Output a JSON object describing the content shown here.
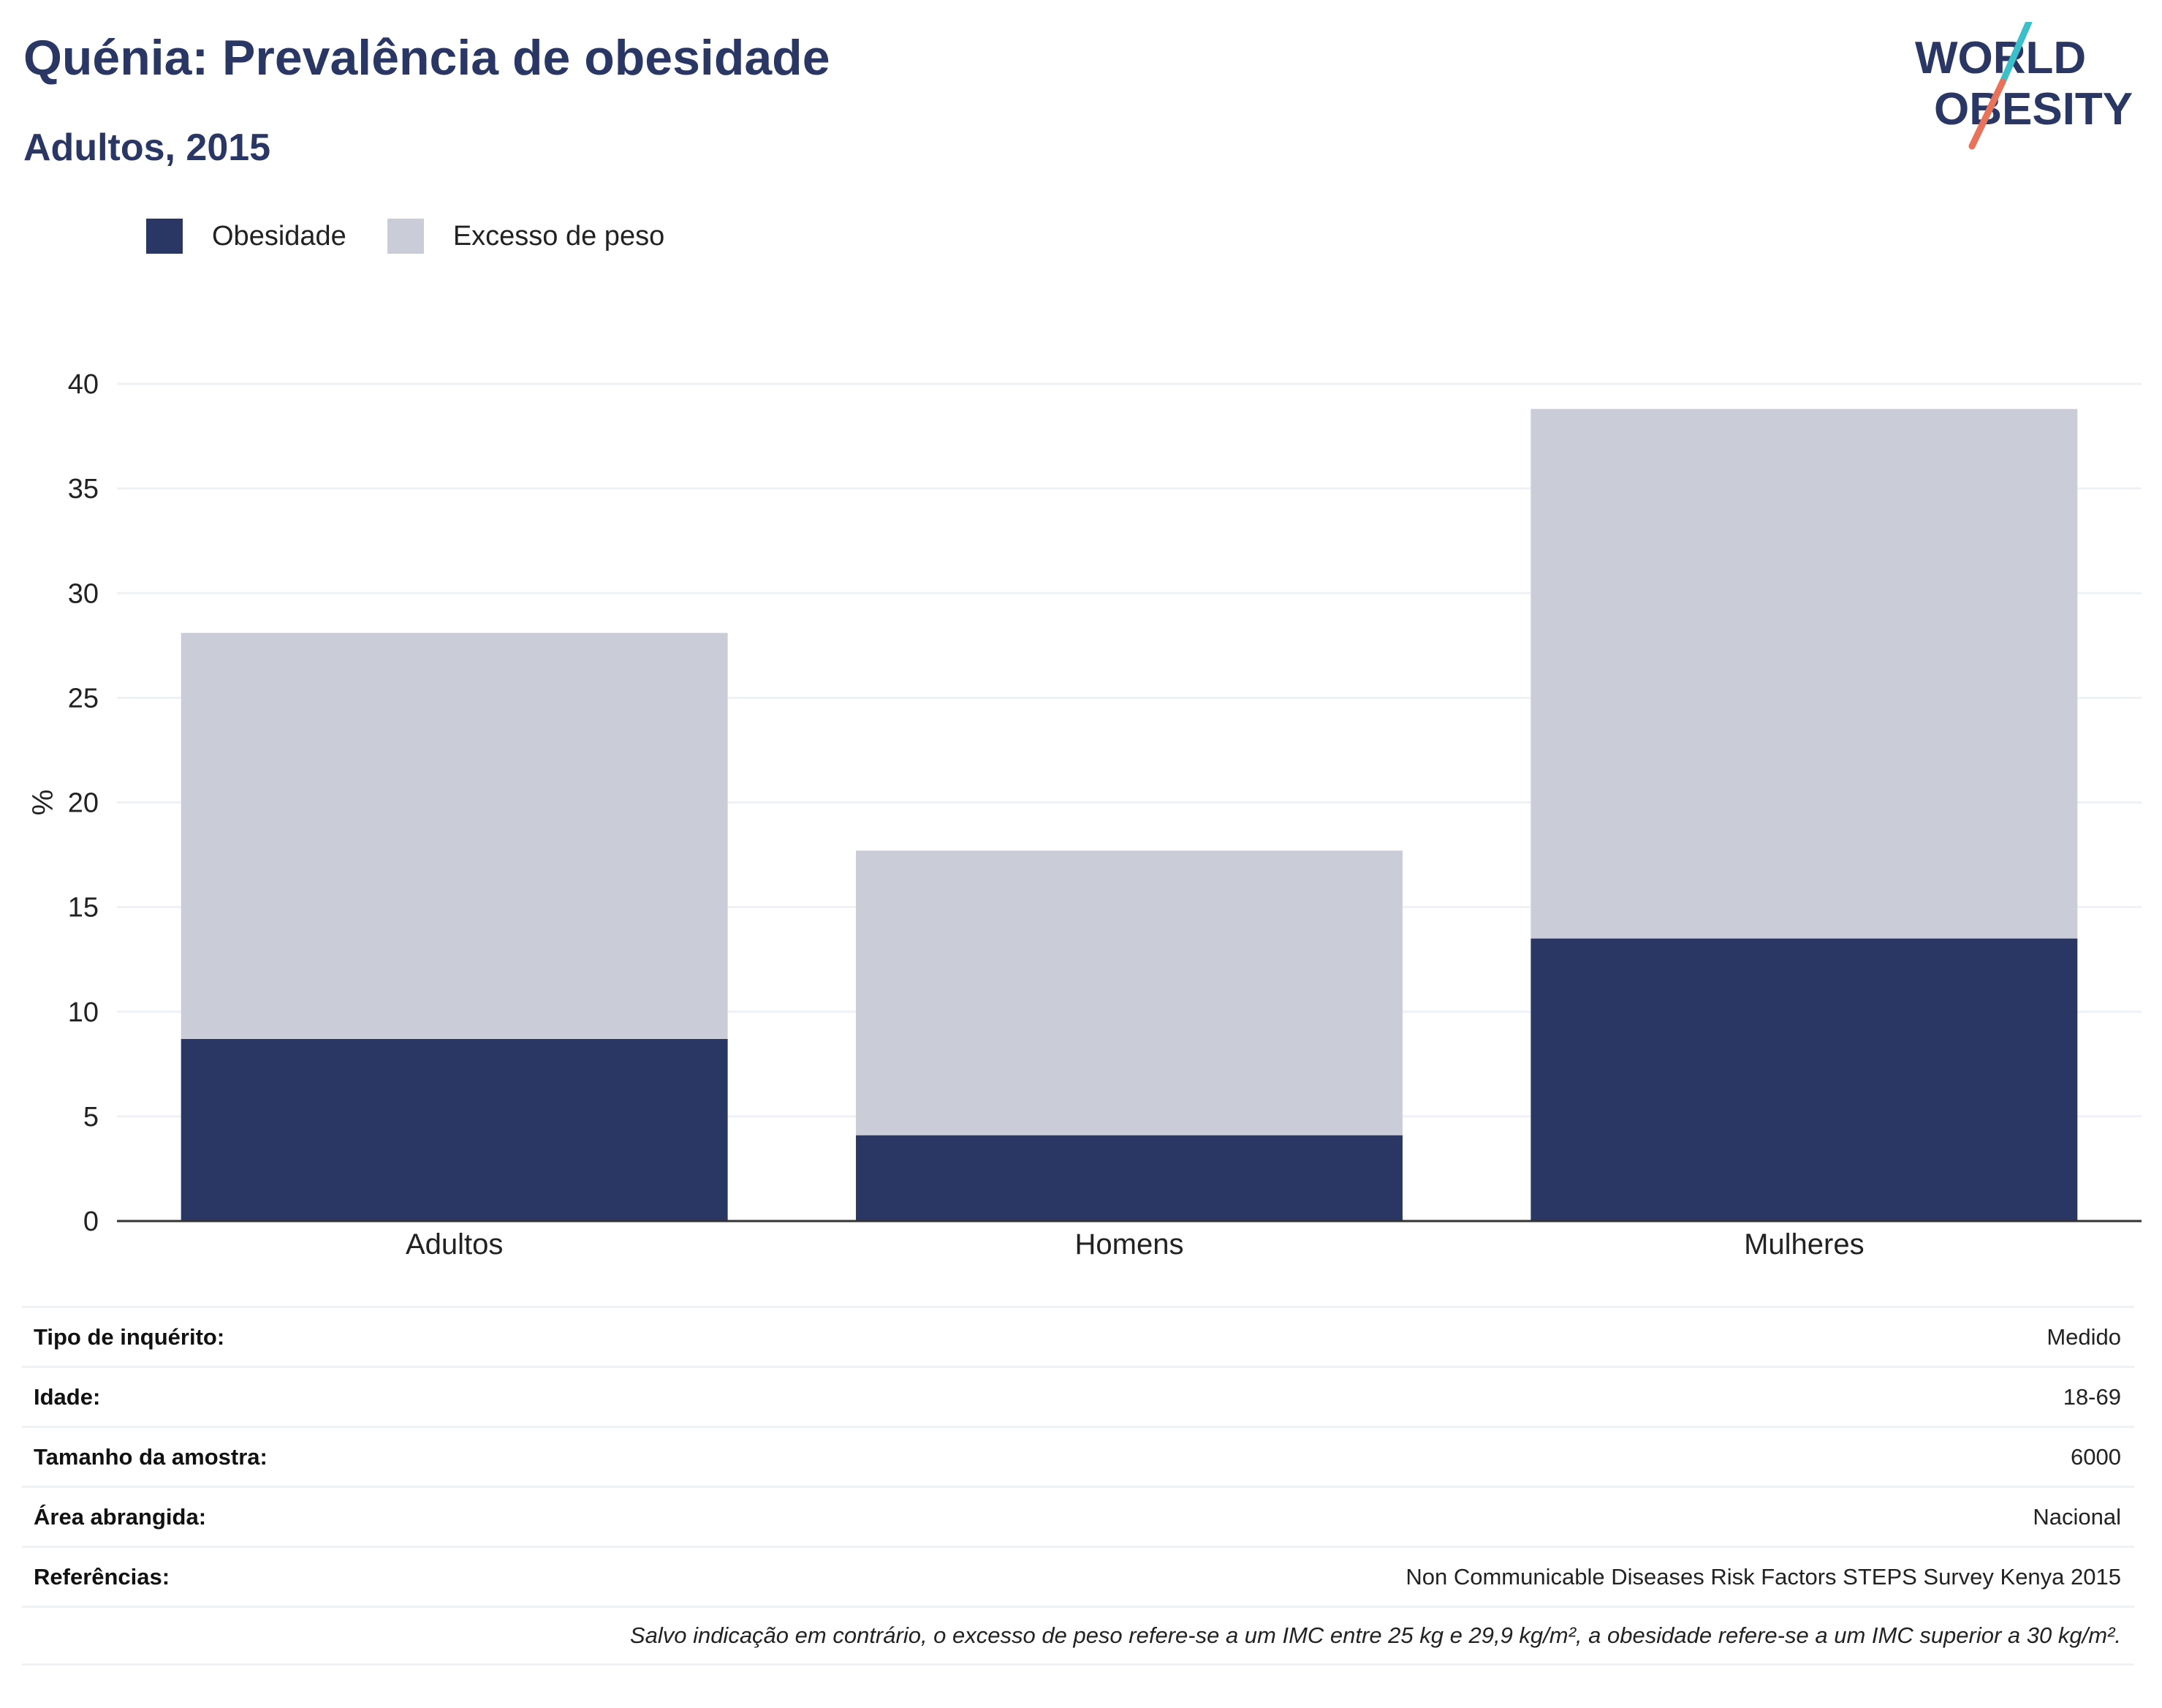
{
  "header": {
    "title": "Quénia: Prevalência de obesidade",
    "subtitle": "Adultos, 2015"
  },
  "logo": {
    "line1": "WORLD",
    "line2": "OBESITY",
    "text_color": "#2a3764",
    "accent_teal": "#3bbfc8",
    "accent_coral": "#e8735a"
  },
  "colors": {
    "obesity": "#2a3764",
    "overweight": "#cacdd8",
    "grid": "#eef2f5",
    "axis": "#333333"
  },
  "chart_data": {
    "type": "bar",
    "stacked": true,
    "title": "Quénia: Prevalência de obesidade",
    "subtitle": "Adultos, 2015",
    "xlabel": "",
    "ylabel": "%",
    "ylim": [
      0,
      40
    ],
    "yticks": [
      0,
      5,
      10,
      15,
      20,
      25,
      30,
      35,
      40
    ],
    "grid": true,
    "legend_position": "top-left",
    "categories": [
      "Adultos",
      "Homens",
      "Mulheres"
    ],
    "series": [
      {
        "name": "Obesidade",
        "values": [
          8.7,
          4.1,
          13.5
        ],
        "color": "#2a3764"
      },
      {
        "name": "Excesso de peso",
        "values": [
          19.4,
          13.6,
          25.3
        ],
        "color": "#cacdd8"
      }
    ]
  },
  "info_table": {
    "rows": [
      {
        "label": "Tipo de inquérito:",
        "value": "Medido"
      },
      {
        "label": "Idade:",
        "value": "18-69"
      },
      {
        "label": "Tamanho da amostra:",
        "value": "6000"
      },
      {
        "label": "Área abrangida:",
        "value": "Nacional"
      },
      {
        "label": "Referências:",
        "value": "Non Communicable Diseases Risk Factors STEPS Survey Kenya 2015"
      }
    ],
    "note": "Salvo indicação em contrário, o excesso de peso refere-se a um IMC entre 25 kg e 29,9 kg/m², a obesidade refere-se a um IMC superior a 30 kg/m²."
  }
}
